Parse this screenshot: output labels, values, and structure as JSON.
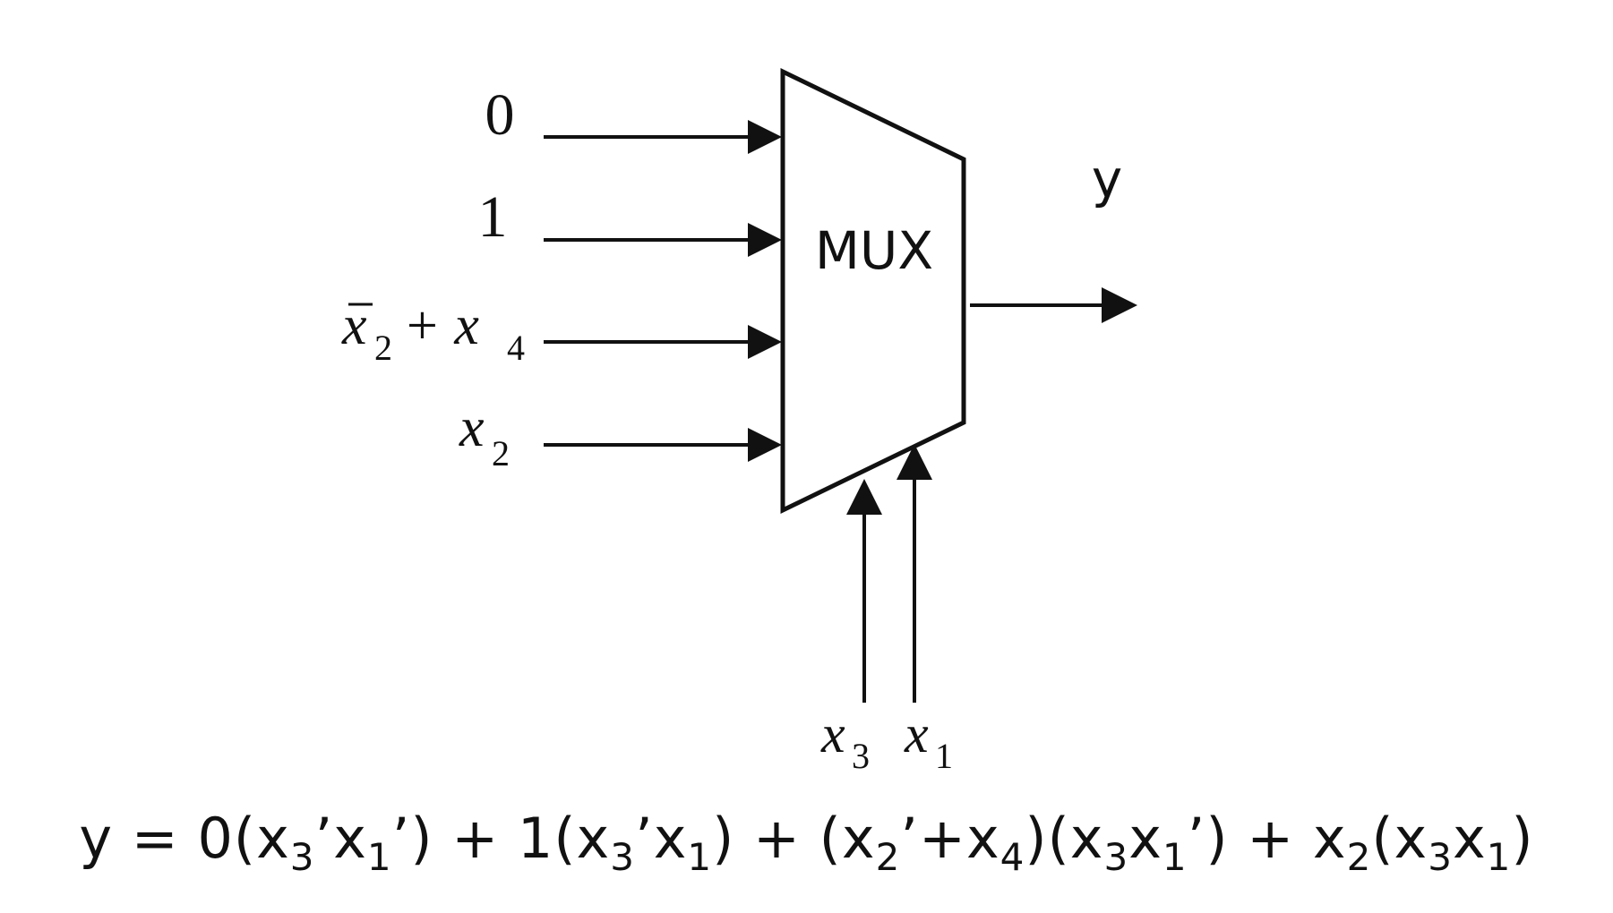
{
  "diagram": {
    "block_label": "MUX",
    "output_label": "y",
    "inputs": [
      {
        "base": "0",
        "sub": "",
        "tail": ""
      },
      {
        "base": "1",
        "sub": "",
        "tail": ""
      },
      {
        "base": "x",
        "sub": "2",
        "tail": " + x",
        "tail_sub": "4",
        "bar": true
      },
      {
        "base": "x",
        "sub": "2",
        "tail": ""
      }
    ],
    "selects": [
      {
        "base": "x",
        "sub": "3"
      },
      {
        "base": "x",
        "sub": "1"
      }
    ]
  },
  "equation": {
    "p1": "y = 0(x",
    "s1": "3",
    "p2": "’x",
    "s2": "1",
    "p3": "’) + 1(x",
    "s3": "3",
    "p4": "’x",
    "s4": "1",
    "p5": ") + (x",
    "s5": "2",
    "p6": "’+x",
    "s6": "4",
    "p7": ")(x",
    "s7": "3",
    "p8": "x",
    "s8": "1",
    "p9": "’) + x",
    "s9": "2",
    "p10": "(x",
    "s10": "3",
    "p11": "x",
    "s11": "1",
    "p12": ")"
  },
  "colors": {
    "stroke": "#111111",
    "background": "#ffffff"
  }
}
